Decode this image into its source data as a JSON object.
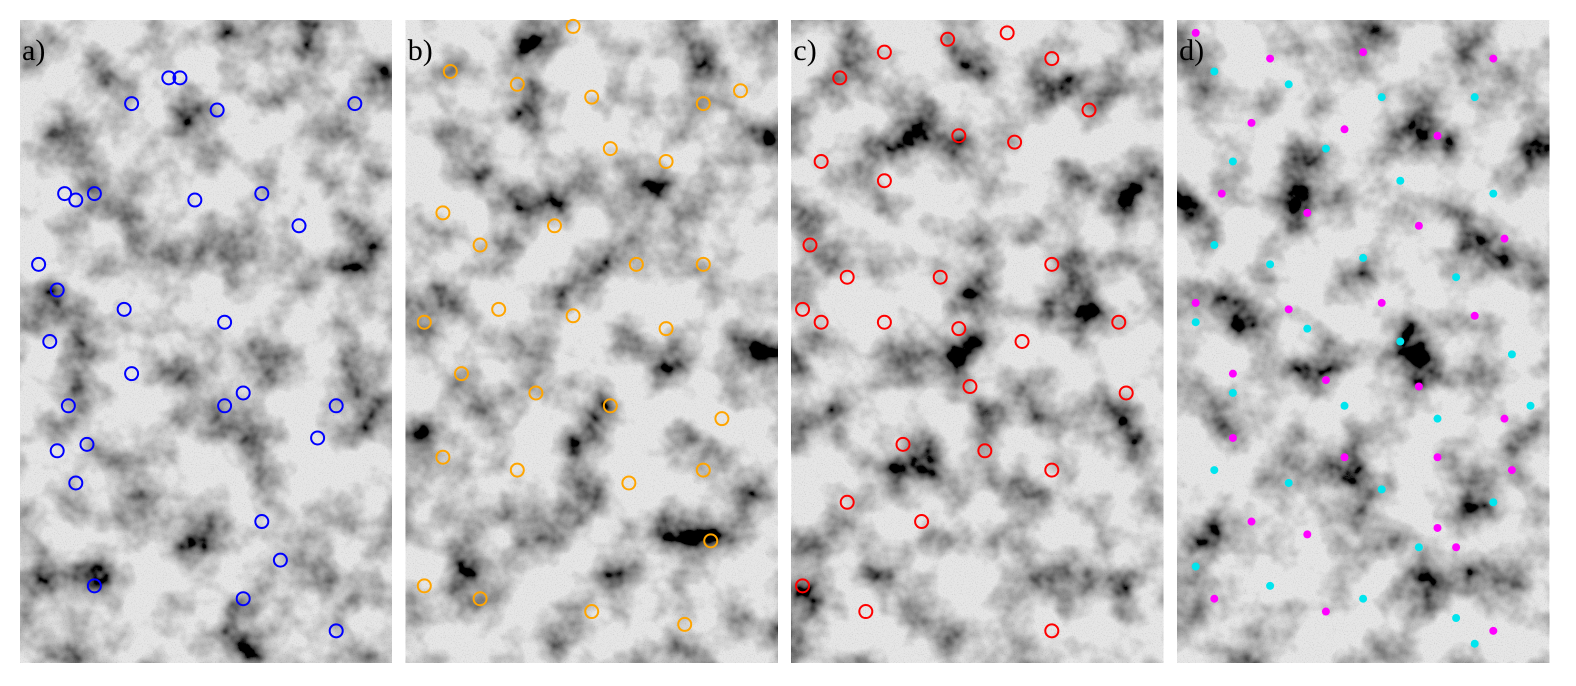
{
  "chart_data": [
    {
      "type": "scatter",
      "label": "a)",
      "series": [
        {
          "color": "#0000ff",
          "marker": "open",
          "x": [
            0.4,
            0.43,
            0.3,
            0.53,
            0.9,
            0.12,
            0.15,
            0.2,
            0.47,
            0.65,
            0.75,
            0.05,
            0.1,
            0.28,
            0.55,
            0.08,
            0.3,
            0.6,
            0.85,
            0.13,
            0.55,
            0.8,
            0.1,
            0.18,
            0.15,
            0.65,
            0.7,
            0.2,
            0.6,
            0.85
          ],
          "y": [
            0.09,
            0.09,
            0.13,
            0.14,
            0.13,
            0.27,
            0.28,
            0.27,
            0.28,
            0.27,
            0.32,
            0.38,
            0.42,
            0.45,
            0.47,
            0.5,
            0.55,
            0.58,
            0.6,
            0.6,
            0.6,
            0.65,
            0.67,
            0.66,
            0.72,
            0.78,
            0.84,
            0.88,
            0.9,
            0.95
          ]
        }
      ]
    },
    {
      "type": "scatter",
      "label": "b)",
      "series": [
        {
          "color": "#ffa500",
          "marker": "open",
          "x": [
            0.45,
            0.12,
            0.3,
            0.5,
            0.8,
            0.9,
            0.55,
            0.7,
            0.1,
            0.2,
            0.4,
            0.62,
            0.8,
            0.05,
            0.25,
            0.45,
            0.7,
            0.15,
            0.35,
            0.55,
            0.85,
            0.1,
            0.3,
            0.6,
            0.8,
            0.05,
            0.2,
            0.5,
            0.75,
            0.82
          ],
          "y": [
            0.01,
            0.08,
            0.1,
            0.12,
            0.13,
            0.11,
            0.2,
            0.22,
            0.3,
            0.35,
            0.32,
            0.38,
            0.38,
            0.47,
            0.45,
            0.46,
            0.48,
            0.55,
            0.58,
            0.6,
            0.62,
            0.68,
            0.7,
            0.72,
            0.7,
            0.88,
            0.9,
            0.92,
            0.94,
            0.81
          ]
        }
      ]
    },
    {
      "type": "scatter",
      "label": "c)",
      "series": [
        {
          "color": "#ff0000",
          "marker": "open",
          "x": [
            0.42,
            0.58,
            0.25,
            0.7,
            0.13,
            0.08,
            0.45,
            0.6,
            0.8,
            0.25,
            0.05,
            0.15,
            0.4,
            0.7,
            0.03,
            0.08,
            0.25,
            0.45,
            0.62,
            0.88,
            0.48,
            0.9,
            0.3,
            0.52,
            0.7,
            0.15,
            0.35,
            0.03,
            0.2,
            0.7
          ],
          "y": [
            0.03,
            0.02,
            0.05,
            0.06,
            0.09,
            0.22,
            0.18,
            0.19,
            0.14,
            0.25,
            0.35,
            0.4,
            0.4,
            0.38,
            0.45,
            0.47,
            0.47,
            0.48,
            0.5,
            0.47,
            0.57,
            0.58,
            0.66,
            0.67,
            0.7,
            0.75,
            0.78,
            0.88,
            0.92,
            0.95
          ]
        }
      ]
    },
    {
      "type": "scatter",
      "label": "d)",
      "series": [
        {
          "color": "#00e5ee",
          "marker": "filled",
          "x": [
            0.1,
            0.3,
            0.55,
            0.8,
            0.15,
            0.4,
            0.6,
            0.85,
            0.1,
            0.25,
            0.5,
            0.75,
            0.05,
            0.35,
            0.6,
            0.9,
            0.15,
            0.45,
            0.7,
            0.95,
            0.1,
            0.3,
            0.55,
            0.85,
            0.05,
            0.25,
            0.5,
            0.75,
            0.8,
            0.65
          ],
          "y": [
            0.08,
            0.1,
            0.12,
            0.12,
            0.22,
            0.2,
            0.25,
            0.27,
            0.35,
            0.38,
            0.37,
            0.4,
            0.47,
            0.48,
            0.5,
            0.52,
            0.58,
            0.6,
            0.62,
            0.6,
            0.7,
            0.72,
            0.73,
            0.75,
            0.85,
            0.88,
            0.9,
            0.93,
            0.97,
            0.82
          ]
        },
        {
          "color": "#ff00ff",
          "marker": "filled",
          "x": [
            0.05,
            0.25,
            0.5,
            0.85,
            0.2,
            0.45,
            0.7,
            0.12,
            0.35,
            0.65,
            0.88,
            0.05,
            0.3,
            0.55,
            0.8,
            0.15,
            0.4,
            0.65,
            0.88,
            0.15,
            0.45,
            0.7,
            0.9,
            0.2,
            0.35,
            0.7,
            0.75,
            0.1,
            0.4,
            0.85
          ],
          "y": [
            0.02,
            0.06,
            0.05,
            0.06,
            0.16,
            0.17,
            0.18,
            0.27,
            0.3,
            0.32,
            0.34,
            0.44,
            0.45,
            0.44,
            0.46,
            0.55,
            0.56,
            0.57,
            0.62,
            0.65,
            0.68,
            0.68,
            0.7,
            0.78,
            0.8,
            0.79,
            0.82,
            0.9,
            0.92,
            0.95
          ]
        }
      ]
    }
  ]
}
